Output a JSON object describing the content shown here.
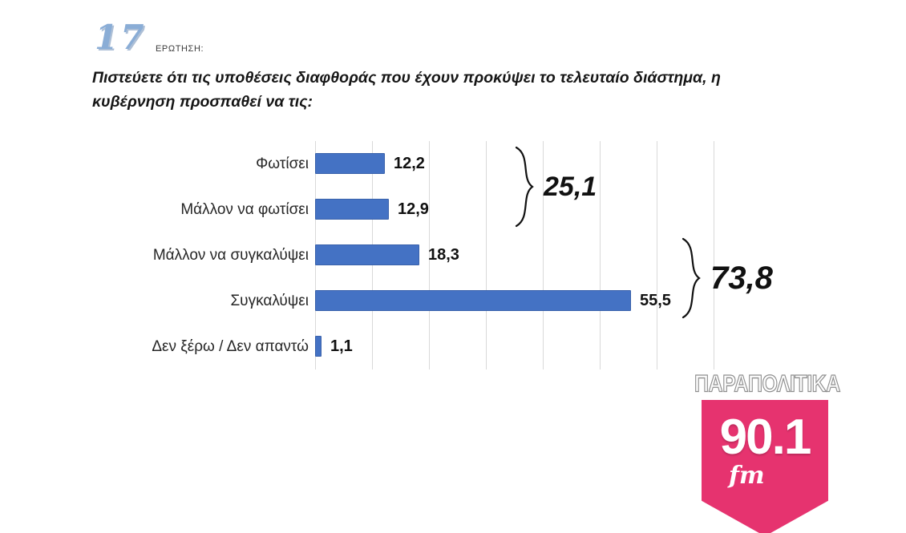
{
  "header": {
    "question_number": "17",
    "question_label": "ΕΡΩΤΗΣΗ:",
    "question_text": "Πιστεύετε ότι τις υποθέσεις διαφθοράς που έχουν προκύψει το τελευταίο διάστημα, η κυβέρνηση προσπαθεί να τις:"
  },
  "chart_data": {
    "type": "bar",
    "orientation": "horizontal",
    "title": "",
    "xlabel": "",
    "ylabel": "",
    "categories": [
      "Φωτίσει",
      "Μάλλον να φωτίσει",
      "Μάλλον να συγκαλύψει",
      "Συγκαλύψει",
      "Δεν ξέρω / Δεν απαντώ"
    ],
    "values": [
      12.2,
      12.9,
      18.3,
      55.5,
      1.1
    ],
    "value_labels": [
      "12,2",
      "12,9",
      "18,3",
      "55,5",
      "1,1"
    ],
    "xlim": [
      0,
      70
    ],
    "grid": true,
    "legend": false,
    "bar_color": "#4472C4",
    "bar_border_color": "#3a62ab",
    "groups": [
      {
        "label": "25,1",
        "value": 25.1,
        "from_row": 0,
        "to_row": 1
      },
      {
        "label": "73,8",
        "value": 73.8,
        "from_row": 2,
        "to_row": 3
      }
    ]
  },
  "logo": {
    "brand": "ΠΑΡΑΠΟΛΙΤΙΚΑ",
    "frequency": "90.1",
    "band": "fm",
    "accent_color": "#e6336f"
  }
}
